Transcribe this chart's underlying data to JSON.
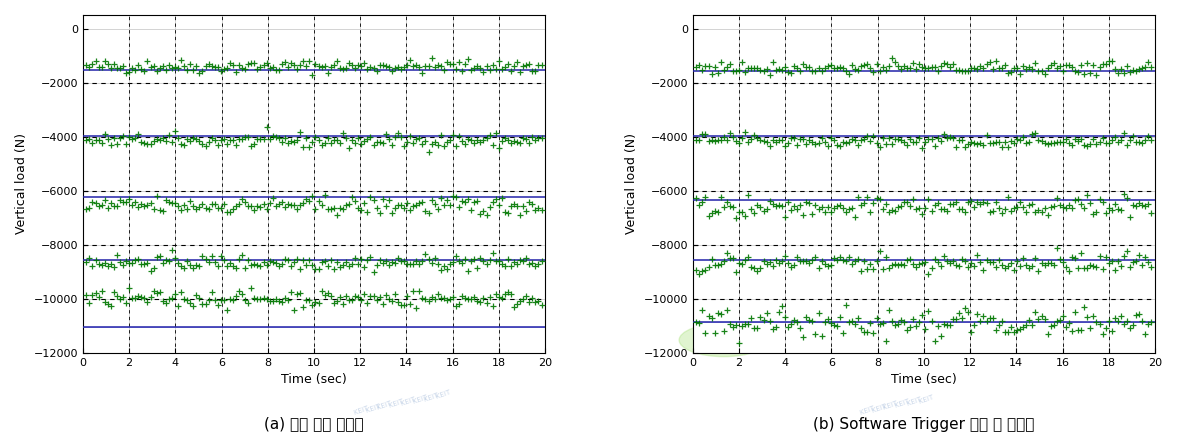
{
  "subplot_titles": [
    "(a) 기존 추정 데이터",
    "(b) Software Trigger 사용 후 데이터"
  ],
  "xlabel": "Time (sec)",
  "ylabel": "Vertical load (N)",
  "xlim": [
    0,
    20
  ],
  "ylim": [
    -12000,
    500
  ],
  "xticks": [
    0,
    2,
    4,
    6,
    8,
    10,
    12,
    14,
    16,
    18,
    20
  ],
  "yticks": [
    0,
    -2000,
    -4000,
    -6000,
    -8000,
    -10000,
    -12000
  ],
  "blue_levels_left": [
    -1550,
    -3980,
    -6250,
    -8580,
    -11050
  ],
  "blue_levels_right": [
    -1580,
    -3990,
    -6330,
    -8580,
    -10850
  ],
  "green_mean_left": [
    -1400,
    -4150,
    -6550,
    -8650,
    -10000
  ],
  "green_mean_right": [
    -1450,
    -4150,
    -6600,
    -8680,
    -10900
  ],
  "green_noise_left": [
    280,
    300,
    380,
    320,
    350
  ],
  "green_noise_right": [
    280,
    280,
    400,
    380,
    600
  ],
  "n_points": 150,
  "blue_line_color": "#2222aa",
  "green_star_color": "#007700",
  "background_color": "#ffffff",
  "figsize": [
    11.77,
    4.36
  ],
  "dpi": 100
}
